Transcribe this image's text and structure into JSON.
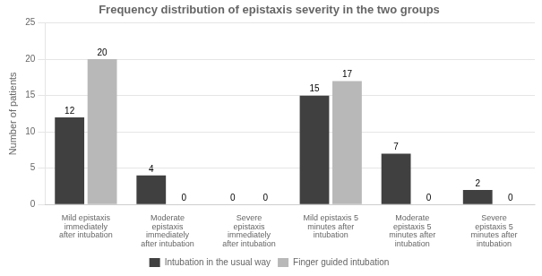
{
  "chart_data": {
    "type": "bar",
    "title": "Frequency distribution of epistaxis severity in the two groups",
    "ylabel": "Number of patients",
    "categories": [
      "Mild epistaxis\nimmediately\nafter intubation",
      "Moderate\nepistaxis\nimmediately\nafter intubation",
      "Severe\nepistaxis\nimmediately\nafter intubation",
      "Mild epistaxis 5\nminutes after\nintubation",
      "Moderate\nepistaxis 5\nminutes after\nintubation",
      "Severe\nepistaxis 5\nminutes after\nintubation"
    ],
    "series": [
      {
        "name": "Intubation in the usual way",
        "color": "#404040",
        "values": [
          12,
          4,
          0,
          15,
          7,
          2
        ]
      },
      {
        "name": "Finger guided intubation",
        "color": "#b8b8b8",
        "values": [
          20,
          0,
          0,
          17,
          0,
          0
        ]
      }
    ],
    "ylim": [
      0,
      25
    ],
    "yticks": [
      0,
      5,
      10,
      15,
      20,
      25
    ],
    "grid": true,
    "legend": "bottom",
    "data_labels": true
  }
}
